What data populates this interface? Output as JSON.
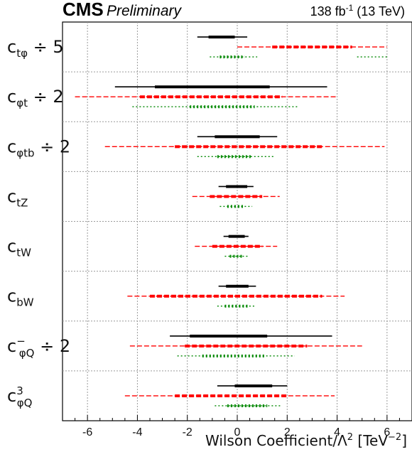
{
  "header": {
    "experiment": "CMS",
    "status": "Preliminary",
    "lumi_prefix": "138 fb",
    "lumi_exp": "-1",
    "lumi_suffix": " (13 TeV)"
  },
  "axis": {
    "xlabel_main": "Wilson Coefficient/Λ",
    "xlabel_sq": "2",
    "xlabel_unit": " [TeV",
    "xlabel_unit_exp": "−2",
    "xlabel_close": "]"
  },
  "rows": [
    {
      "label": {
        "main": "c",
        "sub": "tφ",
        "sup": "",
        "tail": " ÷ 5"
      }
    },
    {
      "label": {
        "main": "c",
        "sub": "φt",
        "sup": "",
        "tail": " ÷ 2"
      }
    },
    {
      "label": {
        "main": "c",
        "sub": "φtb",
        "sup": "",
        "tail": " ÷ 2"
      }
    },
    {
      "label": {
        "main": "c",
        "sub": "tZ",
        "sup": "",
        "tail": ""
      }
    },
    {
      "label": {
        "main": "c",
        "sub": "tW",
        "sup": "",
        "tail": ""
      }
    },
    {
      "label": {
        "main": "c",
        "sub": "bW",
        "sup": "",
        "tail": ""
      }
    },
    {
      "label": {
        "main": "c",
        "sub": "φQ",
        "sup": "−",
        "tail": " ÷ 2"
      }
    },
    {
      "label": {
        "main": "c",
        "sub": "φQ",
        "sup": "3",
        "tail": ""
      }
    }
  ],
  "chart_data": {
    "type": "interval",
    "xlim": [
      -7,
      7
    ],
    "xticks": [
      -6,
      -4,
      -2,
      0,
      2,
      4,
      6
    ],
    "grid": true,
    "series_colors": {
      "black": "#000000",
      "red": "#ff0000",
      "green": "#008800"
    },
    "series": [
      {
        "style": "solid",
        "color": "black",
        "intervals": [
          {
            "row": 0,
            "outer": [
              [
                -1.6,
                0.4
              ]
            ],
            "inner": [
              [
                -1.15,
                -0.1
              ]
            ]
          },
          {
            "row": 1,
            "outer": [
              [
                -4.9,
                3.6
              ]
            ],
            "inner": [
              [
                -3.3,
                1.3
              ]
            ]
          },
          {
            "row": 2,
            "outer": [
              [
                -1.6,
                1.6
              ]
            ],
            "inner": [
              [
                -0.9,
                0.9
              ]
            ]
          },
          {
            "row": 3,
            "outer": [
              [
                -0.75,
                0.65
              ]
            ],
            "inner": [
              [
                -0.45,
                0.4
              ]
            ]
          },
          {
            "row": 4,
            "outer": [
              [
                -0.55,
                0.45
              ]
            ],
            "inner": [
              [
                -0.35,
                0.3
              ]
            ]
          },
          {
            "row": 5,
            "outer": [
              [
                -0.75,
                0.75
              ]
            ],
            "inner": [
              [
                -0.45,
                0.45
              ]
            ]
          },
          {
            "row": 6,
            "outer": [
              [
                -2.7,
                3.8
              ]
            ],
            "inner": [
              [
                -1.9,
                1.2
              ]
            ]
          },
          {
            "row": 7,
            "outer": [
              [
                -0.8,
                2.0
              ]
            ],
            "inner": [
              [
                -0.1,
                1.4
              ]
            ]
          }
        ]
      },
      {
        "style": "dashed",
        "color": "red",
        "intervals": [
          {
            "row": 0,
            "outer": [
              [
                0.0,
                6.0
              ]
            ],
            "inner": [
              [
                1.4,
                4.6
              ]
            ]
          },
          {
            "row": 1,
            "outer": [
              [
                -6.5,
                4.0
              ]
            ],
            "inner": [
              [
                -3.9,
                1.8
              ]
            ]
          },
          {
            "row": 2,
            "outer": [
              [
                -5.3,
                5.9
              ]
            ],
            "inner": [
              [
                -2.5,
                3.4
              ]
            ]
          },
          {
            "row": 3,
            "outer": [
              [
                -1.8,
                1.7
              ]
            ],
            "inner": [
              [
                -1.1,
                1.0
              ]
            ]
          },
          {
            "row": 4,
            "outer": [
              [
                -1.7,
                1.6
              ]
            ],
            "inner": [
              [
                -1.0,
                1.0
              ]
            ]
          },
          {
            "row": 5,
            "outer": [
              [
                -4.4,
                4.3
              ]
            ],
            "inner": [
              [
                -3.5,
                3.4
              ]
            ]
          },
          {
            "row": 6,
            "outer": [
              [
                -4.3,
                5.0
              ]
            ],
            "inner": [
              [
                -2.1,
                2.8
              ]
            ]
          },
          {
            "row": 7,
            "outer": [
              [
                -4.5,
                3.9
              ]
            ],
            "inner": [
              [
                -2.5,
                2.0
              ]
            ]
          }
        ]
      },
      {
        "style": "dotted",
        "color": "green",
        "intervals": [
          {
            "row": 0,
            "outer": [
              [
                -1.1,
                0.8
              ],
              [
                4.8,
                6.0
              ]
            ],
            "inner": [
              [
                -0.7,
                0.3
              ]
            ]
          },
          {
            "row": 1,
            "outer": [
              [
                -4.2,
                2.4
              ]
            ],
            "inner": [
              [
                -1.9,
                0.7
              ]
            ]
          },
          {
            "row": 2,
            "outer": [
              [
                -1.6,
                1.5
              ]
            ],
            "inner": [
              [
                -0.8,
                0.6
              ]
            ]
          },
          {
            "row": 3,
            "outer": [
              [
                -0.7,
                0.6
              ]
            ],
            "inner": [
              [
                -0.4,
                0.3
              ]
            ]
          },
          {
            "row": 4,
            "outer": [
              [
                -0.5,
                0.45
              ]
            ],
            "inner": [
              [
                -0.3,
                0.25
              ]
            ]
          },
          {
            "row": 5,
            "outer": [
              [
                -0.8,
                0.75
              ]
            ],
            "inner": [
              [
                -0.5,
                0.45
              ]
            ]
          },
          {
            "row": 6,
            "outer": [
              [
                -2.4,
                2.3
              ]
            ],
            "inner": [
              [
                -1.4,
                1.1
              ]
            ]
          },
          {
            "row": 7,
            "outer": [
              [
                -0.9,
                1.8
              ]
            ],
            "inner": [
              [
                -0.4,
                1.2
              ]
            ]
          }
        ]
      }
    ]
  }
}
